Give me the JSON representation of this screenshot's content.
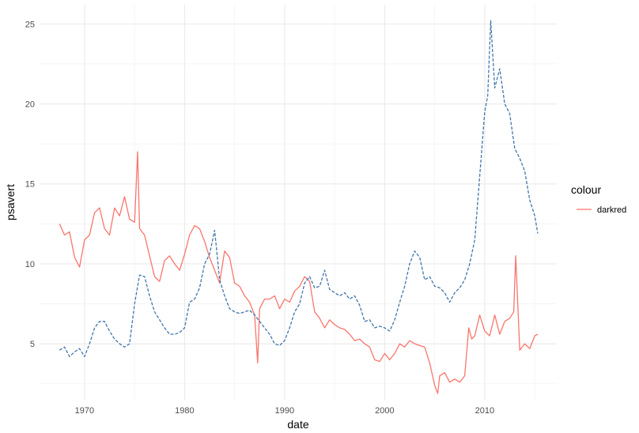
{
  "chart_data": {
    "type": "line",
    "title": "",
    "xlabel": "date",
    "ylabel": "psavert",
    "x_unit": "year",
    "xlim": [
      1965.5,
      2017.2
    ],
    "ylim": [
      1.5,
      26.2
    ],
    "x_ticks": [
      1970,
      1980,
      1990,
      2000,
      2010
    ],
    "x_tick_labels": [
      "1970",
      "1980",
      "1990",
      "2000",
      "2010"
    ],
    "y_ticks": [
      5,
      10,
      15,
      20,
      25
    ],
    "y_tick_labels": [
      "5",
      "10",
      "15",
      "20",
      "25"
    ],
    "grid": true,
    "legend": {
      "title": "colour",
      "position": "right",
      "entries": [
        {
          "label": "darkred",
          "color": "#f8766d"
        }
      ]
    },
    "series": [
      {
        "name": "psavert",
        "color": "#f8766d",
        "line_style": "solid",
        "x": [
          1967.5,
          1968.0,
          1968.5,
          1969.0,
          1969.5,
          1970.0,
          1970.5,
          1971.0,
          1971.5,
          1972.0,
          1972.5,
          1973.0,
          1973.5,
          1974.0,
          1974.5,
          1975.0,
          1975.3,
          1975.5,
          1976.0,
          1976.5,
          1977.0,
          1977.5,
          1978.0,
          1978.5,
          1979.0,
          1979.5,
          1980.0,
          1980.5,
          1981.0,
          1981.5,
          1982.0,
          1982.5,
          1983.0,
          1983.5,
          1984.0,
          1984.5,
          1985.0,
          1985.5,
          1986.0,
          1986.5,
          1987.0,
          1987.3,
          1987.5,
          1988.0,
          1988.5,
          1989.0,
          1989.5,
          1990.0,
          1990.5,
          1991.0,
          1991.5,
          1992.0,
          1992.5,
          1993.0,
          1993.5,
          1994.0,
          1994.5,
          1995.0,
          1995.5,
          1996.0,
          1996.5,
          1997.0,
          1997.5,
          1998.0,
          1998.5,
          1999.0,
          1999.5,
          2000.0,
          2000.5,
          2001.0,
          2001.5,
          2002.0,
          2002.5,
          2003.0,
          2003.5,
          2004.0,
          2004.5,
          2005.0,
          2005.3,
          2005.5,
          2006.0,
          2006.5,
          2007.0,
          2007.5,
          2008.0,
          2008.4,
          2008.7,
          2009.0,
          2009.5,
          2010.0,
          2010.5,
          2011.0,
          2011.5,
          2012.0,
          2012.5,
          2012.9,
          2013.1,
          2013.5,
          2014.0,
          2014.5,
          2015.0,
          2015.3
        ],
        "y": [
          12.5,
          11.8,
          12.0,
          10.4,
          9.8,
          11.5,
          11.8,
          13.2,
          13.5,
          12.2,
          11.8,
          13.5,
          13.0,
          14.2,
          12.8,
          12.6,
          17.0,
          12.2,
          11.8,
          10.5,
          9.2,
          8.9,
          10.2,
          10.5,
          10.0,
          9.6,
          10.6,
          11.8,
          12.4,
          12.2,
          11.4,
          10.4,
          9.6,
          8.8,
          10.8,
          10.4,
          8.8,
          8.6,
          8.0,
          7.6,
          6.8,
          3.8,
          7.2,
          7.8,
          7.8,
          8.0,
          7.2,
          7.8,
          7.6,
          8.3,
          8.6,
          9.2,
          8.9,
          7.0,
          6.6,
          6.0,
          6.5,
          6.2,
          6.0,
          5.9,
          5.6,
          5.2,
          5.3,
          5.0,
          4.8,
          4.0,
          3.9,
          4.4,
          4.0,
          4.4,
          5.0,
          4.8,
          5.2,
          5.0,
          4.9,
          4.8,
          3.8,
          2.4,
          1.9,
          3.0,
          3.2,
          2.6,
          2.8,
          2.6,
          3.0,
          6.0,
          5.3,
          5.5,
          6.8,
          5.8,
          5.5,
          6.8,
          5.6,
          6.4,
          6.6,
          7.0,
          10.5,
          4.6,
          5.0,
          4.7,
          5.5,
          5.6
        ]
      },
      {
        "name": "psavert",
        "color": "#4276ac",
        "line_style": "dashed",
        "x": [
          1967.5,
          1968.0,
          1968.5,
          1969.0,
          1969.5,
          1970.0,
          1970.5,
          1971.0,
          1971.5,
          1972.0,
          1972.5,
          1973.0,
          1973.5,
          1974.0,
          1974.5,
          1975.0,
          1975.5,
          1976.0,
          1976.5,
          1977.0,
          1977.5,
          1978.0,
          1978.5,
          1979.0,
          1979.5,
          1980.0,
          1980.5,
          1981.0,
          1981.5,
          1982.0,
          1982.5,
          1983.0,
          1983.5,
          1984.0,
          1984.5,
          1985.0,
          1985.5,
          1986.0,
          1986.5,
          1987.0,
          1987.5,
          1988.0,
          1988.5,
          1989.0,
          1989.5,
          1990.0,
          1990.5,
          1991.0,
          1991.5,
          1992.0,
          1992.5,
          1993.0,
          1993.5,
          1994.0,
          1994.5,
          1995.0,
          1995.5,
          1996.0,
          1996.5,
          1997.0,
          1997.5,
          1998.0,
          1998.5,
          1999.0,
          1999.5,
          2000.0,
          2000.5,
          2001.0,
          2001.5,
          2002.0,
          2002.5,
          2003.0,
          2003.5,
          2004.0,
          2004.5,
          2005.0,
          2005.5,
          2006.0,
          2006.5,
          2007.0,
          2007.5,
          2008.0,
          2008.5,
          2009.0,
          2009.5,
          2010.0,
          2010.3,
          2010.6,
          2011.0,
          2011.5,
          2012.0,
          2012.5,
          2013.0,
          2013.5,
          2014.0,
          2014.5,
          2015.0,
          2015.3
        ],
        "y": [
          4.6,
          4.8,
          4.2,
          4.5,
          4.7,
          4.2,
          5.0,
          6.0,
          6.4,
          6.4,
          5.8,
          5.3,
          5.0,
          4.8,
          5.0,
          7.5,
          9.3,
          9.2,
          8.0,
          7.0,
          6.5,
          6.0,
          5.6,
          5.6,
          5.7,
          6.0,
          7.6,
          7.8,
          8.5,
          10.0,
          10.6,
          12.1,
          9.0,
          8.0,
          7.2,
          7.0,
          6.9,
          7.0,
          7.1,
          6.8,
          6.4,
          6.0,
          5.6,
          5.0,
          4.9,
          5.2,
          6.0,
          7.0,
          7.5,
          8.8,
          9.2,
          8.5,
          8.6,
          9.6,
          8.4,
          8.2,
          8.0,
          8.2,
          7.8,
          8.0,
          7.4,
          6.4,
          6.5,
          6.0,
          6.1,
          6.0,
          5.8,
          6.5,
          7.6,
          8.6,
          10.0,
          10.8,
          10.4,
          9.0,
          9.2,
          8.6,
          8.5,
          8.2,
          7.6,
          8.2,
          8.5,
          9.0,
          10.0,
          11.5,
          15.5,
          19.5,
          20.5,
          25.2,
          21.0,
          22.2,
          20.0,
          19.4,
          17.2,
          16.6,
          15.8,
          14.0,
          13.0,
          11.9
        ]
      }
    ]
  }
}
